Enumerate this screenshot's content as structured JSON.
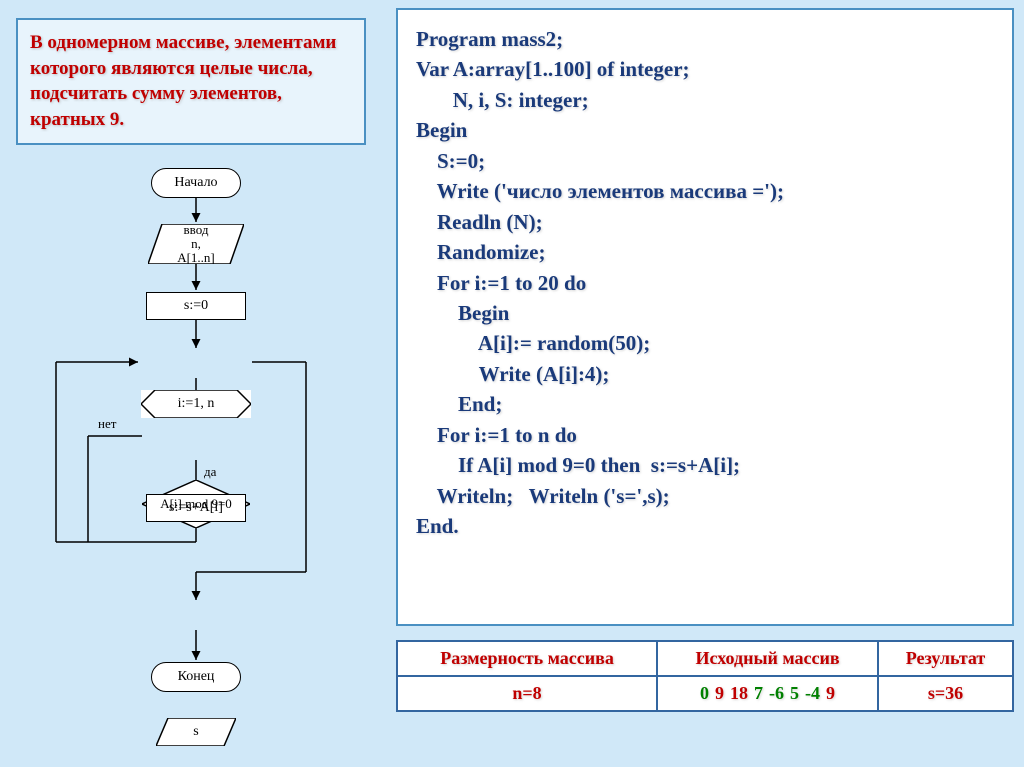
{
  "problem": {
    "text": "В одномерном массиве, элементами которого являются целые числа, подсчитать сумму элементов, кратных 9."
  },
  "code": {
    "lines": [
      "Program mass2;",
      "Var A:array[1..100] of integer;",
      "       N, i, S: integer;",
      "Begin",
      "    S:=0;",
      "    Write ('число элементов массива =');",
      "    Readln (N);",
      "    Randomize;",
      "    For i:=1 to 20 do",
      "        Begin",
      "            A[i]:= random(50);",
      "            Write (A[i]:4);",
      "        End;",
      "    For i:=1 to n do",
      "        If A[i] mod 9=0 then  s:=s+A[i];",
      "    Writeln;   Writeln ('s=',s);",
      "End."
    ]
  },
  "flowchart": {
    "start": "Начало",
    "input": "ввод\nn,\nA[1..n]",
    "init": "s:=0",
    "loop": "i:=1, n",
    "cond": "A[i] mod 9=0",
    "accum": "s:=s+A[i]",
    "output": "s",
    "end": "Конец",
    "yes": "да",
    "no": "нет"
  },
  "table": {
    "headers": [
      "Размерность массива",
      "Исходный массив",
      "Результат"
    ],
    "n": "n=8",
    "array": [
      {
        "v": "0",
        "c": "green"
      },
      {
        "v": "9",
        "c": "red"
      },
      {
        "v": "18",
        "c": "red"
      },
      {
        "v": "7",
        "c": "green"
      },
      {
        "v": "-6",
        "c": "green"
      },
      {
        "v": "5",
        "c": "green"
      },
      {
        "v": "-4",
        "c": "green"
      },
      {
        "v": "9",
        "c": "red"
      }
    ],
    "result": "s=36"
  },
  "colors": {
    "page_bg": "#d0e8f8",
    "box_border": "#4a90c2",
    "code_text": "#1a3a7a",
    "problem_text": "#c00000",
    "table_border": "#3366a0"
  }
}
